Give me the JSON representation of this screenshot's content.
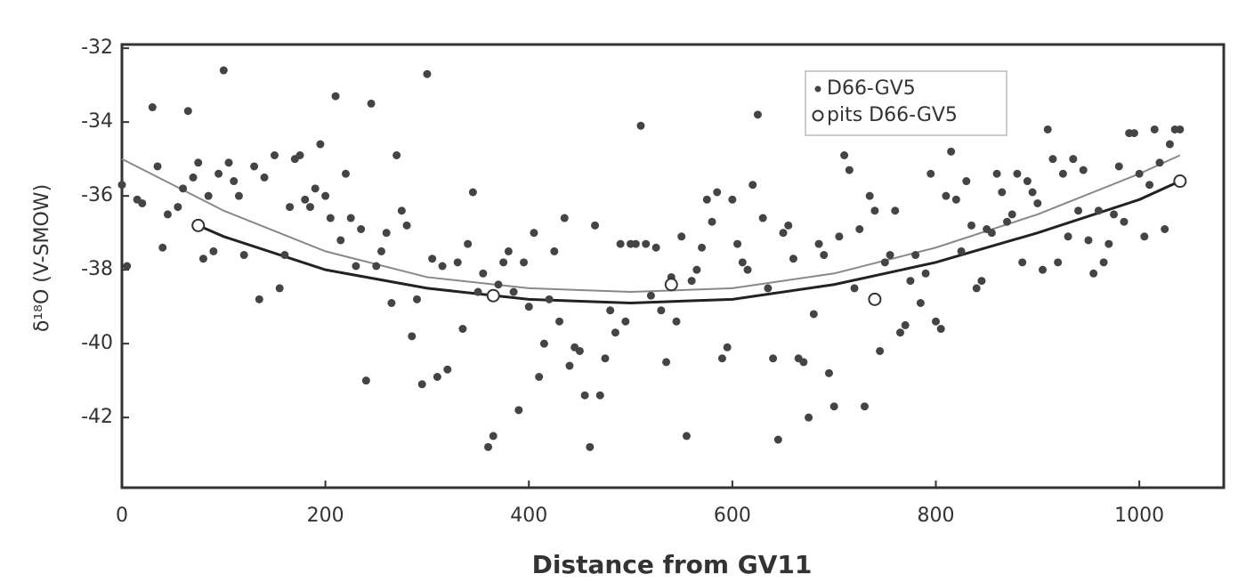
{
  "chart_data": {
    "type": "scatter",
    "xlabel": "Distance from GV11",
    "ylabel": "δ¹⁸O (V-SMOW)",
    "xlim": [
      0,
      1083
    ],
    "ylim": [
      -43.9,
      -31.9
    ],
    "xticks": [
      0,
      200,
      400,
      600,
      800,
      1000
    ],
    "yticks": [
      -32,
      -34,
      -36,
      -38,
      -40,
      -42
    ],
    "legend": "upper right",
    "series": [
      {
        "name": "D66-GV5",
        "color": "#444444",
        "marker": "filled",
        "x": [
          0,
          5,
          15,
          20,
          30,
          35,
          40,
          45,
          55,
          60,
          65,
          70,
          75,
          80,
          85,
          90,
          95,
          100,
          105,
          110,
          115,
          120,
          130,
          135,
          140,
          150,
          155,
          160,
          165,
          170,
          175,
          180,
          185,
          190,
          195,
          200,
          205,
          210,
          215,
          220,
          225,
          230,
          235,
          240,
          245,
          250,
          255,
          260,
          265,
          270,
          275,
          280,
          285,
          290,
          295,
          300,
          305,
          310,
          315,
          320,
          330,
          335,
          340,
          345,
          350,
          355,
          360,
          365,
          370,
          375,
          380,
          385,
          390,
          395,
          400,
          405,
          410,
          415,
          420,
          425,
          430,
          435,
          440,
          445,
          450,
          455,
          460,
          465,
          470,
          475,
          480,
          485,
          490,
          495,
          500,
          505,
          510,
          515,
          520,
          525,
          530,
          535,
          540,
          545,
          550,
          555,
          560,
          565,
          570,
          575,
          580,
          585,
          590,
          595,
          600,
          605,
          610,
          615,
          620,
          625,
          630,
          635,
          640,
          645,
          650,
          655,
          660,
          665,
          670,
          675,
          680,
          685,
          690,
          695,
          700,
          705,
          710,
          715,
          720,
          725,
          730,
          735,
          740,
          745,
          750,
          755,
          760,
          765,
          770,
          775,
          780,
          785,
          790,
          795,
          800,
          805,
          810,
          815,
          820,
          825,
          830,
          835,
          840,
          845,
          850,
          855,
          860,
          865,
          870,
          875,
          880,
          885,
          890,
          895,
          900,
          905,
          910,
          915,
          920,
          925,
          930,
          935,
          940,
          945,
          950,
          955,
          960,
          965,
          970,
          975,
          980,
          985,
          990,
          995,
          1000,
          1005,
          1010,
          1015,
          1020,
          1025,
          1030,
          1035,
          1040
        ],
        "values": [
          -35.7,
          -37.9,
          -36.1,
          -36.2,
          -33.6,
          -35.2,
          -37.4,
          -36.5,
          -36.3,
          -35.8,
          -33.7,
          -35.5,
          -35.1,
          -37.7,
          -36,
          -37.5,
          -35.4,
          -32.6,
          -35.1,
          -35.6,
          -36,
          -37.6,
          -35.2,
          -38.8,
          -35.5,
          -34.9,
          -38.5,
          -37.6,
          -36.3,
          -35,
          -34.9,
          -36.1,
          -36.3,
          -35.8,
          -34.6,
          -36,
          -36.6,
          -33.3,
          -37.2,
          -35.4,
          -36.6,
          -37.9,
          -36.9,
          -41,
          -33.5,
          -37.9,
          -37.5,
          -37,
          -38.9,
          -34.9,
          -36.4,
          -36.8,
          -39.8,
          -38.8,
          -41.1,
          -32.7,
          -37.7,
          -40.9,
          -37.9,
          -40.7,
          -37.8,
          -39.6,
          -37.3,
          -35.9,
          -38.6,
          -38.1,
          -42.8,
          -42.5,
          -38.4,
          -37.8,
          -37.5,
          -38.6,
          -41.8,
          -37.8,
          -39,
          -37,
          -40.9,
          -40,
          -38.8,
          -37.5,
          -39.4,
          -36.6,
          -40.6,
          -40.1,
          -40.2,
          -41.4,
          -42.8,
          -36.8,
          -41.4,
          -40.4,
          -39.1,
          -39.7,
          -37.3,
          -39.4,
          -37.3,
          -37.3,
          -34.1,
          -37.3,
          -38.7,
          -37.4,
          -39.1,
          -40.5,
          -38.2,
          -39.4,
          -37.1,
          -42.5,
          -38.3,
          -38,
          -37.4,
          -36.1,
          -36.7,
          -35.9,
          -40.4,
          -40.1,
          -36.1,
          -37.3,
          -37.8,
          -38,
          -35.7,
          -33.8,
          -36.6,
          -38.5,
          -40.4,
          -42.6,
          -37,
          -36.8,
          -37.7,
          -40.4,
          -40.5,
          -42,
          -39.2,
          -37.3,
          -37.6,
          -40.8,
          -41.7,
          -37.1,
          -34.9,
          -35.3,
          -38.5,
          -36.9,
          -41.7,
          -36,
          -36.4,
          -40.2,
          -37.8,
          -37.6,
          -36.4,
          -39.7,
          -39.5,
          -38.3,
          -37.6,
          -38.9,
          -38.1,
          -35.4,
          -39.4,
          -39.6,
          -36,
          -34.8,
          -36.1,
          -37.5,
          -35.6,
          -36.8,
          -38.5,
          -38.3,
          -36.9,
          -37,
          -35.4,
          -35.9,
          -36.7,
          -36.5,
          -35.4,
          -37.8,
          -35.6,
          -35.9,
          -36.2,
          -38,
          -34.2,
          -35,
          -37.8,
          -35.4,
          -37.1,
          -35,
          -36.4,
          -35.3,
          -37.2,
          -38.1,
          -36.4,
          -37.8,
          -37.3,
          -36.5,
          -35.2,
          -36.7,
          -34.3,
          -34.3,
          -35.4,
          -37.1,
          -35.7,
          -34.2,
          -35.1,
          -36.9,
          -34.6,
          -34.2,
          -34.2
        ]
      },
      {
        "name": "pits D66-GV5",
        "color": "#333333",
        "marker": "hollow",
        "x": [
          75,
          365,
          540,
          740,
          1040
        ],
        "values": [
          -36.8,
          -38.7,
          -38.4,
          -38.8,
          -35.6
        ]
      }
    ],
    "curves": [
      {
        "color": "#888888",
        "x": [
          0,
          100,
          200,
          300,
          400,
          500,
          600,
          700,
          800,
          900,
          1000,
          1040
        ],
        "values": [
          -35,
          -36.4,
          -37.5,
          -38.2,
          -38.5,
          -38.6,
          -38.5,
          -38.1,
          -37.4,
          -36.5,
          -35.4,
          -34.9
        ]
      },
      {
        "color": "#222222",
        "x": [
          75,
          100,
          200,
          300,
          400,
          500,
          600,
          700,
          800,
          900,
          1000,
          1040
        ],
        "values": [
          -36.8,
          -37.1,
          -38,
          -38.5,
          -38.8,
          -38.9,
          -38.8,
          -38.4,
          -37.8,
          -37,
          -36.1,
          -35.6
        ]
      }
    ]
  }
}
